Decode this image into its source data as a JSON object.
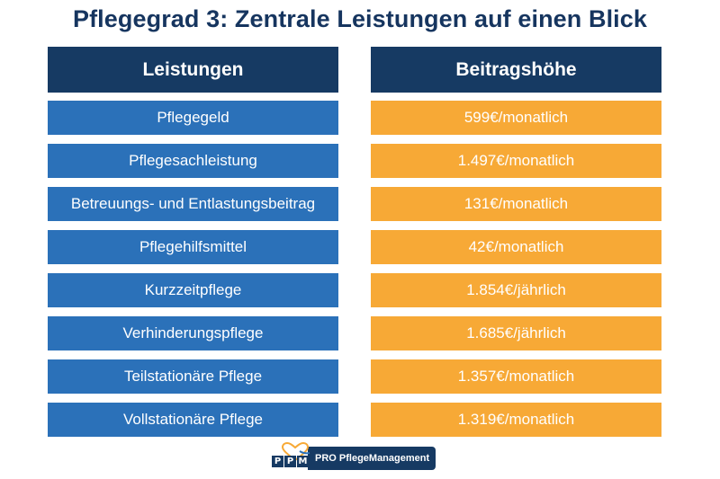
{
  "title": "Pflegegrad 3: Zentrale Leistungen auf einen Blick",
  "headers": {
    "left": "Leistungen",
    "right": "Beitragshöhe"
  },
  "rows": [
    {
      "service": "Pflegegeld",
      "amount": "599€/monatlich"
    },
    {
      "service": "Pflegesachleistung",
      "amount": "1.497€/monatlich"
    },
    {
      "service": "Betreuungs- und Entlastungsbeitrag",
      "amount": "131€/monatlich"
    },
    {
      "service": "Pflegehilfsmittel",
      "amount": "42€/monatlich"
    },
    {
      "service": "Kurzzeitpflege",
      "amount": "1.854€/jährlich"
    },
    {
      "service": "Verhinderungspflege",
      "amount": "1.685€/jährlich"
    },
    {
      "service": "Teilstationäre Pflege",
      "amount": "1.357€/monatlich"
    },
    {
      "service": "Vollstationäre Pflege",
      "amount": "1.319€/monatlich"
    }
  ],
  "logo": {
    "letters": [
      "P",
      "P",
      "M"
    ],
    "text": "PRO PflegeManagement",
    "icon": "heart-hands-icon"
  },
  "colors": {
    "title": "#16355f",
    "header_bg": "#163a63",
    "left_cell_bg": "#2b71b9",
    "right_cell_bg": "#f7a936",
    "logo_accent": "#f7a936"
  }
}
